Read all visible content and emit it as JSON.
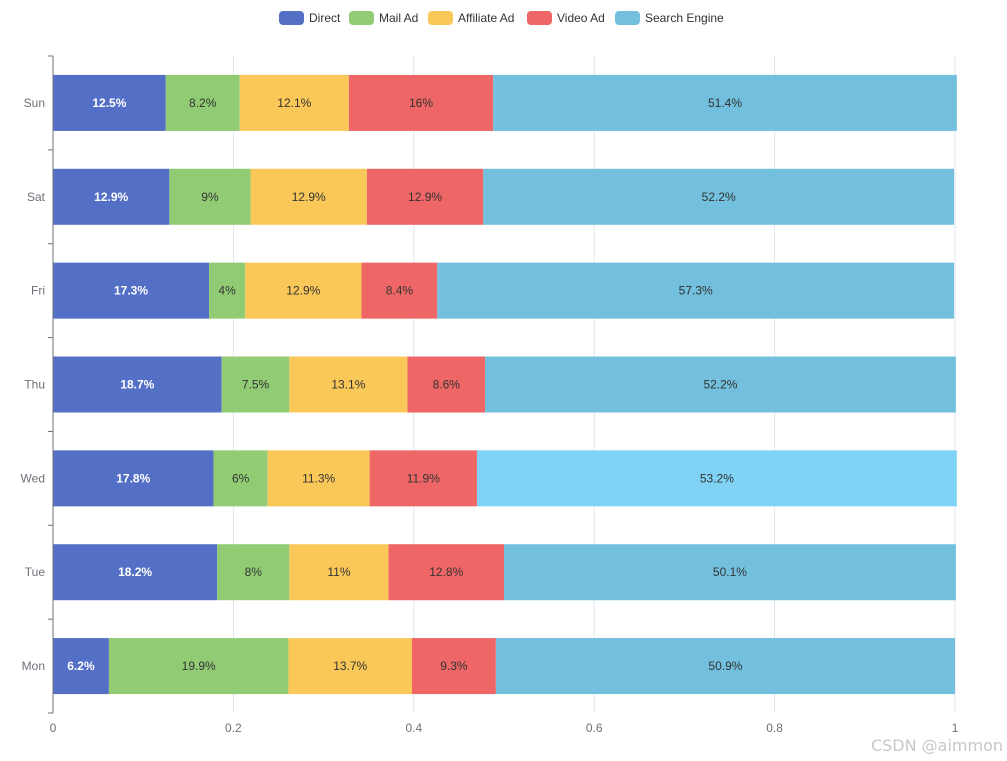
{
  "chart_data": {
    "type": "bar",
    "orientation": "horizontal",
    "stacked": true,
    "categories": [
      "Mon",
      "Tue",
      "Wed",
      "Thu",
      "Fri",
      "Sat",
      "Sun"
    ],
    "series": [
      {
        "name": "Direct",
        "color": "#5470c6",
        "values": [
          0.062,
          0.182,
          0.178,
          0.187,
          0.173,
          0.129,
          0.125
        ],
        "labels": [
          "6.2%",
          "18.2%",
          "17.8%",
          "18.7%",
          "17.3%",
          "12.9%",
          "12.5%"
        ]
      },
      {
        "name": "Mail Ad",
        "color": "#91cc75",
        "values": [
          0.199,
          0.08,
          0.06,
          0.075,
          0.04,
          0.09,
          0.082
        ],
        "labels": [
          "19.9%",
          "8%",
          "6%",
          "7.5%",
          "4%",
          "9%",
          "8.2%"
        ]
      },
      {
        "name": "Affiliate Ad",
        "color": "#fac858",
        "values": [
          0.137,
          0.11,
          0.113,
          0.131,
          0.129,
          0.129,
          0.121
        ],
        "labels": [
          "13.7%",
          "11%",
          "11.3%",
          "13.1%",
          "12.9%",
          "12.9%",
          "12.1%"
        ]
      },
      {
        "name": "Video Ad",
        "color": "#ee6666",
        "values": [
          0.093,
          0.128,
          0.119,
          0.086,
          0.084,
          0.129,
          0.16
        ],
        "labels": [
          "9.3%",
          "12.8%",
          "11.9%",
          "8.6%",
          "8.4%",
          "12.9%",
          "16%"
        ]
      },
      {
        "name": "Search Engine",
        "color": "#73c0de",
        "values": [
          0.509,
          0.501,
          0.532,
          0.522,
          0.573,
          0.522,
          0.514
        ],
        "labels": [
          "50.9%",
          "50.1%",
          "53.2%",
          "52.2%",
          "57.3%",
          "52.2%",
          "51.4%"
        ]
      }
    ],
    "xlim": [
      0,
      1
    ],
    "xticks": [
      "0",
      "0.2",
      "0.4",
      "0.6",
      "0.8",
      "1"
    ],
    "highlight": {
      "series": "Search Engine",
      "category": "Wed",
      "color": "#80d3f5"
    },
    "grid": true,
    "legend": "top-center"
  },
  "watermark": "CSDN @aimmon"
}
